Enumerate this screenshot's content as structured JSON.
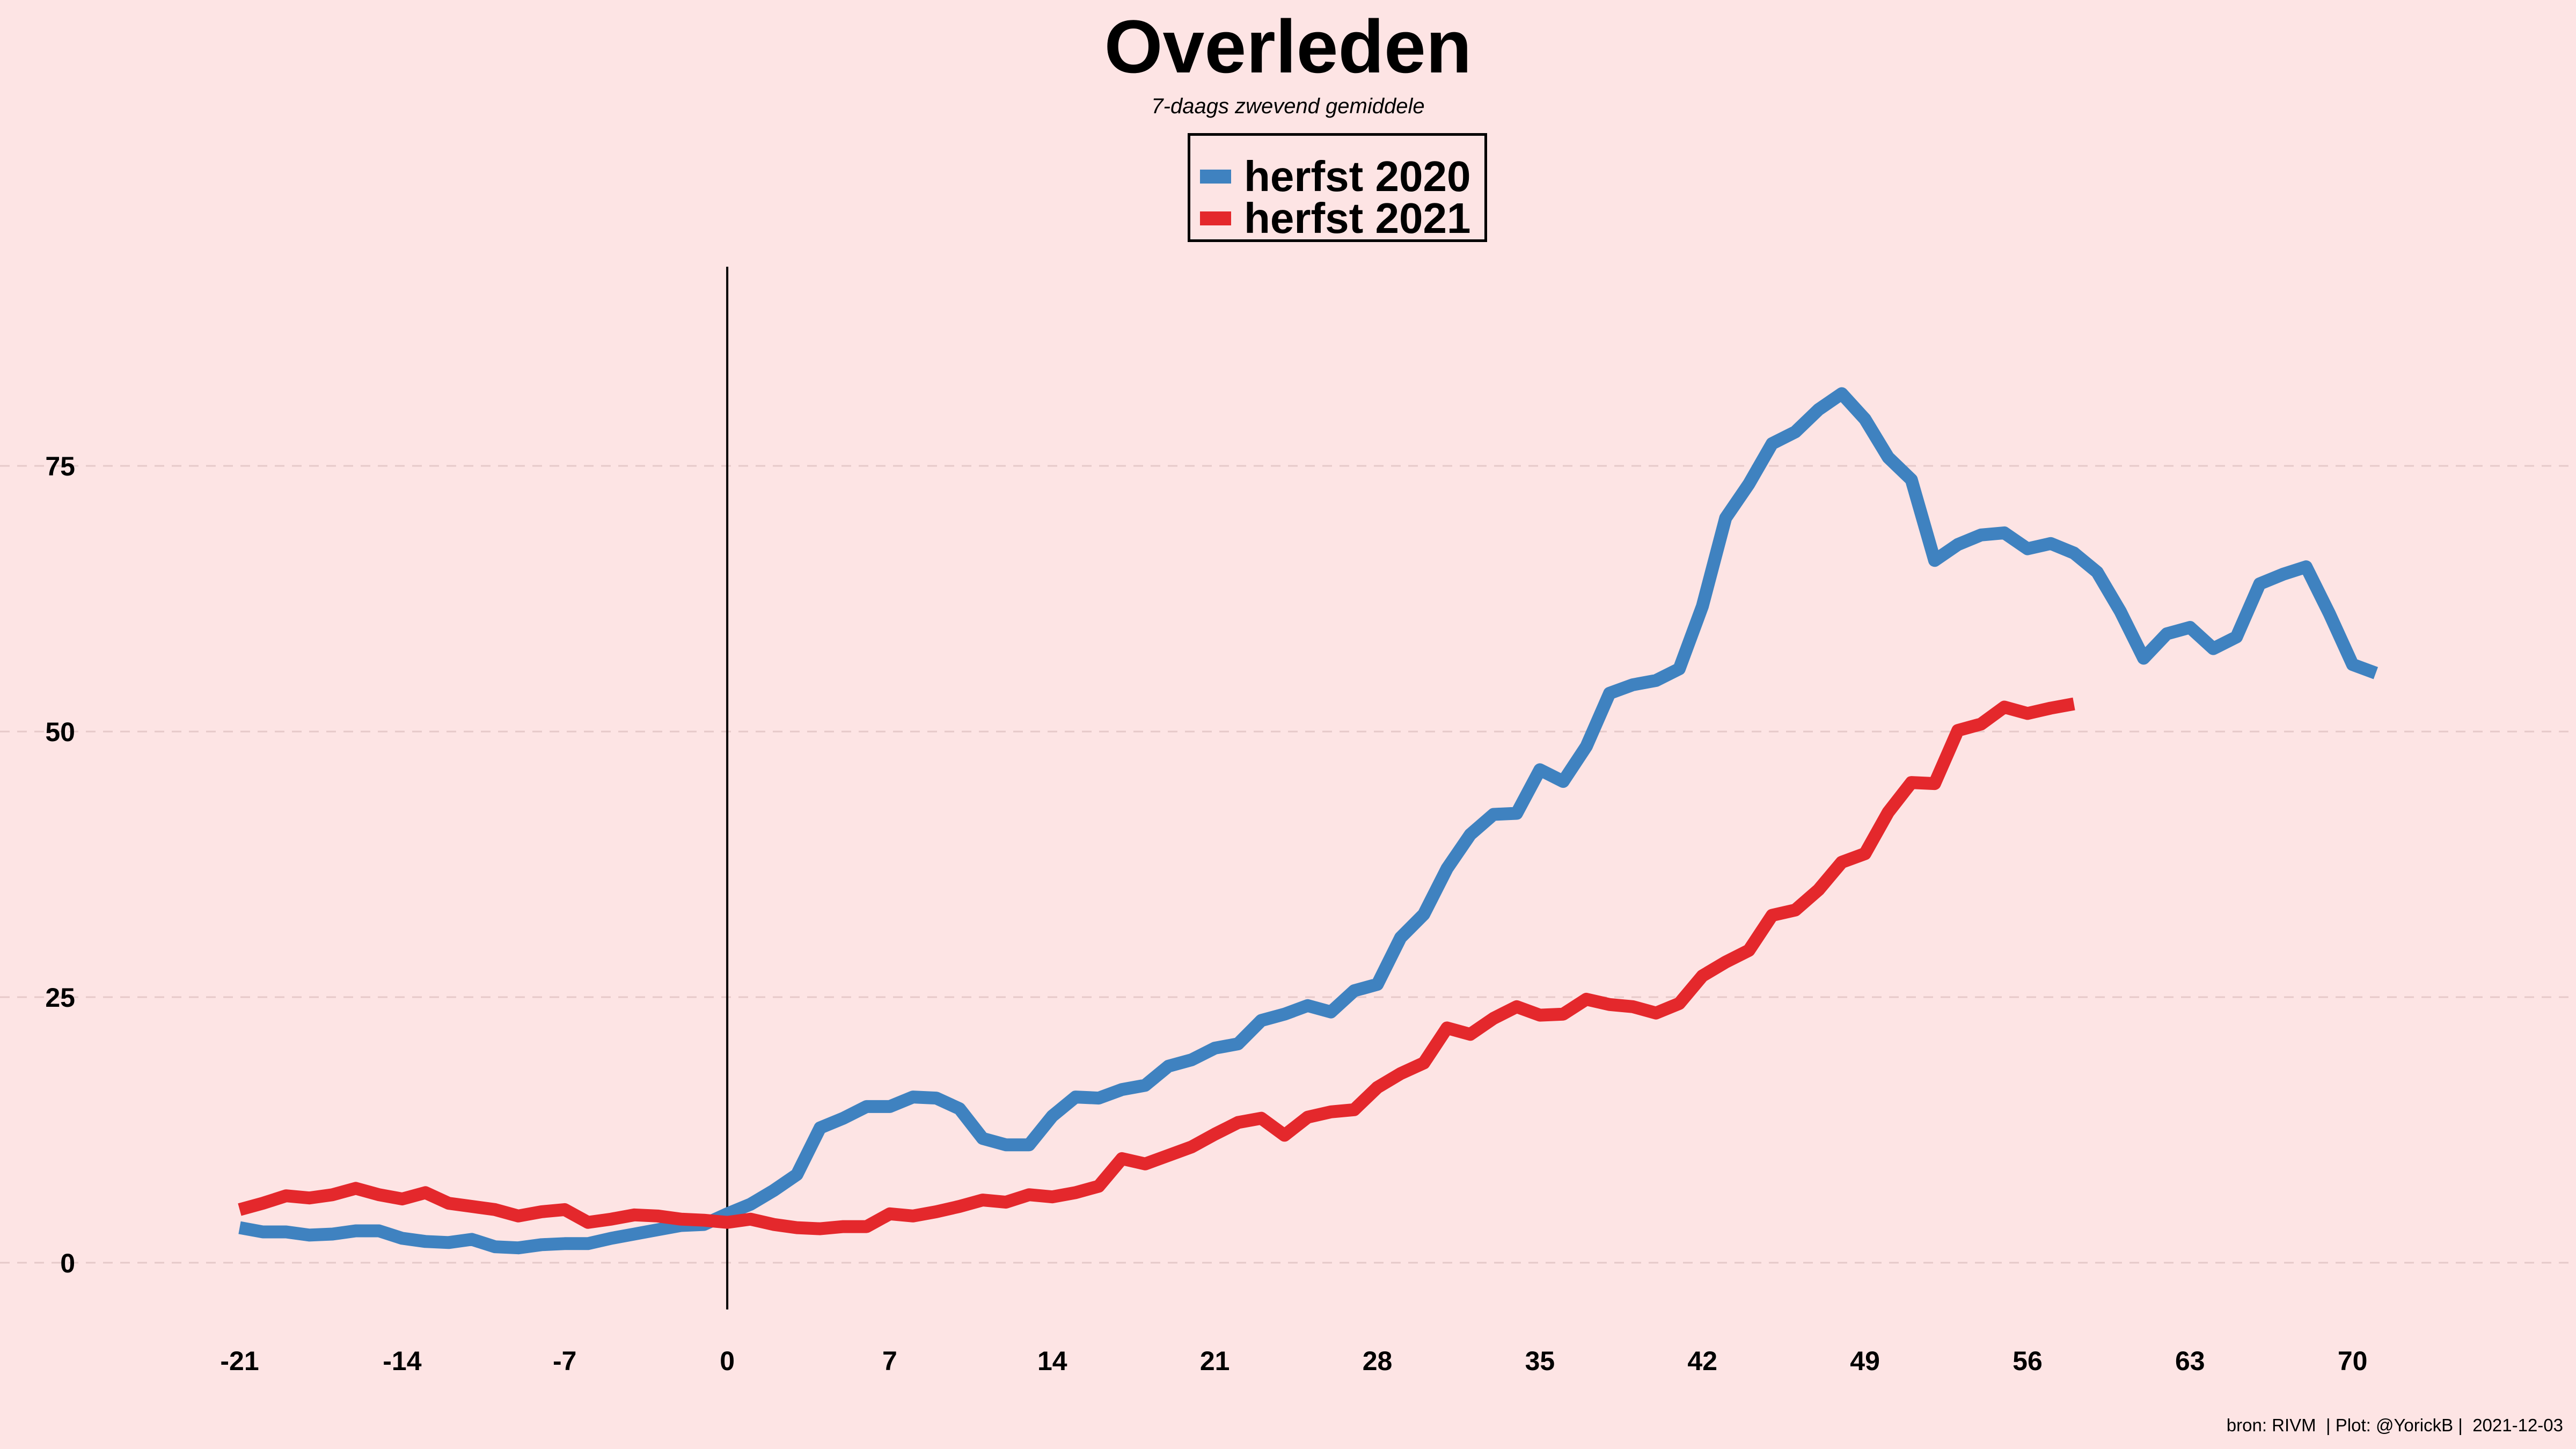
{
  "title": "Overleden",
  "subtitle": "7-daags zwevend gemiddele",
  "caption": "bron: RIVM  | Plot: @YorickB |  2021-12-03",
  "colors": {
    "background": "#fde4e4",
    "gridline": "#e6c9c9",
    "vline": "#000000"
  },
  "chart_data": {
    "type": "line",
    "title": "Overleden",
    "subtitle": "7-daags zwevend gemiddele",
    "xlabel": "",
    "ylabel": "",
    "xlim": [
      -23,
      75
    ],
    "ylim": [
      -4.5,
      94
    ],
    "xticks": [
      -21,
      -14,
      -7,
      0,
      7,
      14,
      21,
      28,
      35,
      42,
      49,
      56,
      63,
      70
    ],
    "yticks": [
      0,
      25,
      50,
      75
    ],
    "grid": "horizontal dashed",
    "vline_x": 0,
    "legend": {
      "placement": "top-center",
      "entries": [
        "herfst 2020",
        "herfst 2021"
      ]
    },
    "series": [
      {
        "name": "herfst 2020",
        "color": "#3f82c0",
        "x": [
          -21,
          -20,
          -19,
          -18,
          -17,
          -16,
          -15,
          -14,
          -13,
          -12,
          -11,
          -10,
          -9,
          -8,
          -7,
          -6,
          -5,
          -4,
          -3,
          -2,
          -1,
          0,
          1,
          2,
          3,
          4,
          5,
          6,
          7,
          8,
          9,
          10,
          11,
          12,
          13,
          14,
          15,
          16,
          17,
          18,
          19,
          20,
          21,
          22,
          23,
          24,
          25,
          26,
          27,
          28,
          29,
          30,
          31,
          32,
          33,
          34,
          35,
          36,
          37,
          38,
          39,
          40,
          41,
          42,
          43,
          44,
          45,
          46,
          47,
          48,
          49,
          50,
          51,
          52,
          53,
          54,
          55,
          56,
          57,
          58,
          59,
          60,
          61,
          62,
          63,
          64,
          65,
          66,
          67,
          68,
          69,
          70,
          71
        ],
        "y": [
          3.3,
          2.9,
          2.9,
          2.6,
          2.7,
          3.0,
          3.0,
          2.3,
          2.0,
          1.9,
          2.2,
          1.5,
          1.4,
          1.7,
          1.8,
          1.8,
          2.3,
          2.7,
          3.1,
          3.5,
          3.6,
          4.6,
          5.5,
          6.8,
          8.3,
          12.7,
          13.6,
          14.7,
          14.7,
          15.6,
          15.5,
          14.5,
          11.7,
          11.1,
          11.1,
          13.8,
          15.6,
          15.5,
          16.3,
          16.7,
          18.5,
          19.1,
          20.2,
          20.6,
          22.8,
          23.4,
          24.2,
          23.6,
          25.6,
          26.2,
          30.6,
          32.8,
          37.1,
          40.3,
          42.2,
          42.3,
          46.4,
          45.3,
          48.6,
          53.6,
          54.4,
          54.8,
          55.9,
          61.8,
          70.1,
          73.3,
          77.1,
          78.2,
          80.3,
          81.8,
          79.4,
          75.8,
          73.7,
          66.1,
          67.6,
          68.5,
          68.7,
          67.2,
          67.7,
          66.8,
          65.0,
          61.3,
          56.9,
          59.2,
          59.8,
          57.8,
          58.9,
          63.9,
          64.8,
          65.5,
          61.1,
          56.3,
          55.5
        ]
      },
      {
        "name": "herfst 2021",
        "color": "#e4282c",
        "x": [
          -21,
          -20,
          -19,
          -18,
          -17,
          -16,
          -15,
          -14,
          -13,
          -12,
          -11,
          -10,
          -9,
          -8,
          -7,
          -6,
          -5,
          -4,
          -3,
          -2,
          -1,
          0,
          1,
          2,
          3,
          4,
          5,
          6,
          7,
          8,
          9,
          10,
          11,
          12,
          13,
          14,
          15,
          16,
          17,
          18,
          19,
          20,
          21,
          22,
          23,
          24,
          25,
          26,
          27,
          28,
          29,
          30,
          31,
          32,
          33,
          34,
          35,
          36,
          37,
          38,
          39,
          40,
          41,
          42,
          43,
          44,
          45,
          46,
          47,
          48,
          49,
          50,
          51,
          52,
          53,
          54,
          55,
          56,
          57,
          58
        ],
        "y": [
          5.0,
          5.6,
          6.3,
          6.1,
          6.4,
          7.0,
          6.4,
          6.0,
          6.6,
          5.6,
          5.3,
          5.0,
          4.4,
          4.8,
          5.0,
          3.8,
          4.1,
          4.5,
          4.4,
          4.1,
          4.0,
          3.8,
          4.1,
          3.6,
          3.3,
          3.2,
          3.4,
          3.4,
          4.6,
          4.4,
          4.8,
          5.3,
          5.9,
          5.7,
          6.4,
          6.2,
          6.6,
          7.2,
          9.8,
          9.3,
          10.1,
          10.9,
          12.1,
          13.2,
          13.6,
          12.0,
          13.7,
          14.2,
          14.4,
          16.5,
          17.8,
          18.8,
          22.1,
          21.5,
          23.0,
          24.1,
          23.3,
          23.4,
          24.8,
          24.3,
          24.1,
          23.5,
          24.4,
          27.0,
          28.3,
          29.4,
          32.7,
          33.2,
          35.1,
          37.7,
          38.5,
          42.4,
          45.2,
          45.1,
          50.1,
          50.7,
          52.3,
          51.7,
          52.2,
          52.6
        ]
      }
    ]
  }
}
